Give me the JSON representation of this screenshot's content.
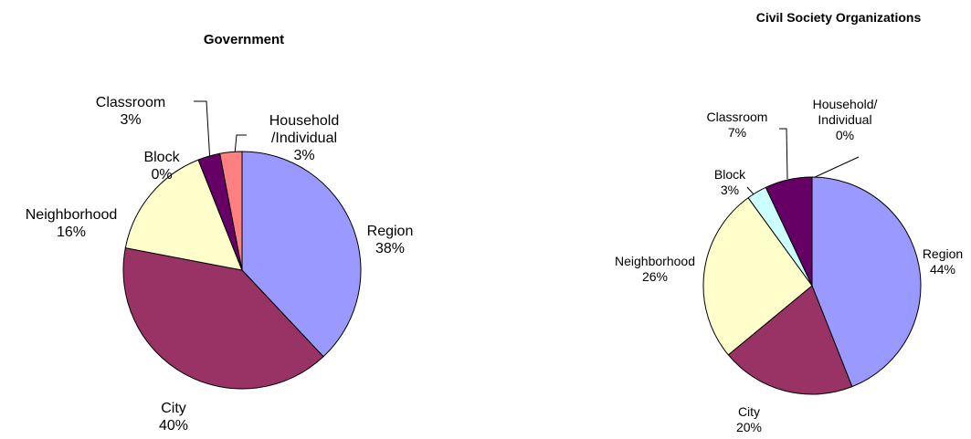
{
  "chart_data": [
    {
      "type": "pie",
      "title": "Government",
      "categories": [
        "Region",
        "City",
        "Neighborhood",
        "Block",
        "Classroom",
        "Household\n/Individual"
      ],
      "values": [
        38,
        40,
        16,
        0,
        3,
        3
      ],
      "value_labels": [
        "38%",
        "40%",
        "16%",
        "0%",
        "3%",
        "3%"
      ],
      "colors": [
        "#9999ff",
        "#993366",
        "#ffffcc",
        "#ccffff",
        "#660066",
        "#ff8080"
      ]
    },
    {
      "type": "pie",
      "title": "Civil Society Organizations",
      "categories": [
        "Region",
        "City",
        "Neighborhood",
        "Block",
        "Classroom",
        "Household/\nIndividual"
      ],
      "values": [
        44,
        20,
        26,
        3,
        7,
        0
      ],
      "value_labels": [
        "44%",
        "20%",
        "26%",
        "3%",
        "7%",
        "0%"
      ],
      "colors": [
        "#9999ff",
        "#993366",
        "#ffffcc",
        "#ccffff",
        "#660066",
        "#ff8080"
      ]
    }
  ]
}
